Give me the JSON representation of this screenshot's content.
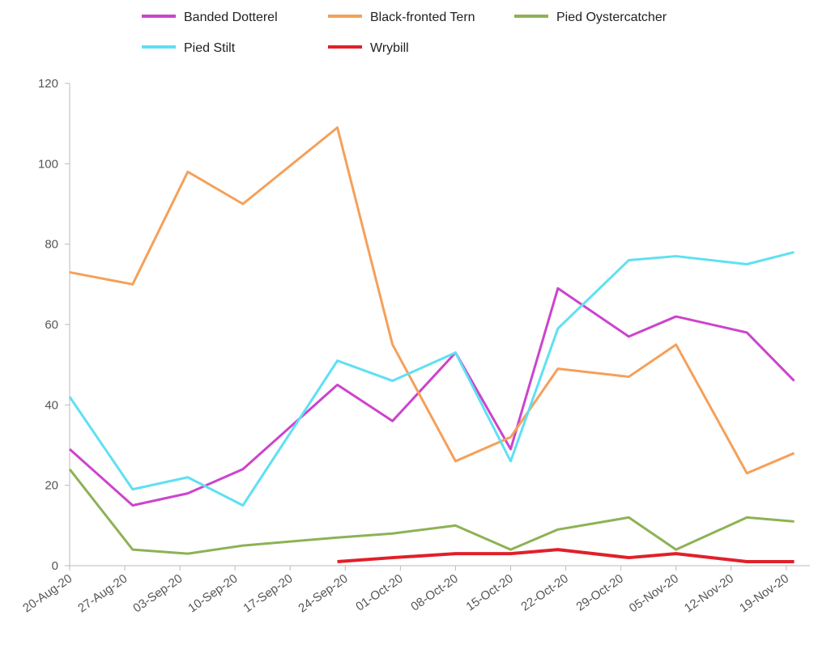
{
  "chart_data": {
    "type": "line",
    "x": [
      "2020-08-20",
      "2020-08-28",
      "2020-09-04",
      "2020-09-11",
      "2020-09-23",
      "2020-09-30",
      "2020-10-08",
      "2020-10-15",
      "2020-10-21",
      "2020-10-30",
      "2020-11-05",
      "2020-11-14",
      "2020-11-20"
    ],
    "series": [
      {
        "name": "Banded Dotterel",
        "color": "#cc44cc",
        "values": [
          29,
          15,
          18,
          24,
          45,
          36,
          53,
          29,
          69,
          57,
          62,
          58,
          46
        ]
      },
      {
        "name": "Black-fronted Tern",
        "color": "#f5a05a",
        "values": [
          73,
          70,
          98,
          90,
          109,
          55,
          26,
          32,
          49,
          47,
          55,
          23,
          28
        ]
      },
      {
        "name": "Pied Oystercatcher",
        "color": "#8db255",
        "values": [
          24,
          4,
          3,
          5,
          7,
          8,
          10,
          4,
          9,
          12,
          4,
          12,
          11
        ]
      },
      {
        "name": "Pied Stilt",
        "color": "#5fe0f2",
        "values": [
          42,
          19,
          22,
          15,
          51,
          46,
          53,
          26,
          59,
          76,
          77,
          75,
          78
        ]
      },
      {
        "name": "Wrybill",
        "color": "#e0202a",
        "values": [
          null,
          null,
          null,
          null,
          1,
          2,
          3,
          3,
          4,
          2,
          3,
          1,
          1
        ]
      }
    ],
    "xlim": [
      "2020-08-20",
      "2020-11-22"
    ],
    "xticks": [
      {
        "value": "2020-08-20",
        "label": "20-Aug-20"
      },
      {
        "value": "2020-08-27",
        "label": "27-Aug-20"
      },
      {
        "value": "2020-09-03",
        "label": "03-Sep-20"
      },
      {
        "value": "2020-09-10",
        "label": "10-Sep-20"
      },
      {
        "value": "2020-09-17",
        "label": "17-Sep-20"
      },
      {
        "value": "2020-09-24",
        "label": "24-Sep-20"
      },
      {
        "value": "2020-10-01",
        "label": "01-Oct-20"
      },
      {
        "value": "2020-10-08",
        "label": "08-Oct-20"
      },
      {
        "value": "2020-10-15",
        "label": "15-Oct-20"
      },
      {
        "value": "2020-10-22",
        "label": "22-Oct-20"
      },
      {
        "value": "2020-10-29",
        "label": "29-Oct-20"
      },
      {
        "value": "2020-11-05",
        "label": "05-Nov-20"
      },
      {
        "value": "2020-11-12",
        "label": "12-Nov-20"
      },
      {
        "value": "2020-11-19",
        "label": "19-Nov-20"
      }
    ],
    "ylim": [
      0,
      120
    ],
    "yticks": [
      0,
      20,
      40,
      60,
      80,
      100,
      120
    ]
  }
}
